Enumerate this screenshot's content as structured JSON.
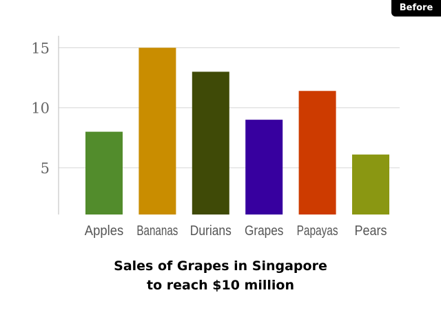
{
  "badge": {
    "label": "Before"
  },
  "chart_data": {
    "type": "bar",
    "categories": [
      "Apples",
      "Bananas",
      "Durians",
      "Grapes",
      "Papayas",
      "Pears"
    ],
    "values": [
      8,
      15,
      13,
      9,
      11.4,
      6.1
    ],
    "colors": [
      "#528c2c",
      "#c98d00",
      "#3f4a07",
      "#37009f",
      "#cd3b00",
      "#8a9712"
    ],
    "title_lines": [
      "Sales of Grapes in Singapore",
      "to reach $10 million"
    ],
    "xlabel": "",
    "ylabel": "",
    "ylim": [
      1.1,
      16
    ],
    "yticks": [
      5,
      10,
      15
    ],
    "grid": true,
    "legend": "none"
  }
}
